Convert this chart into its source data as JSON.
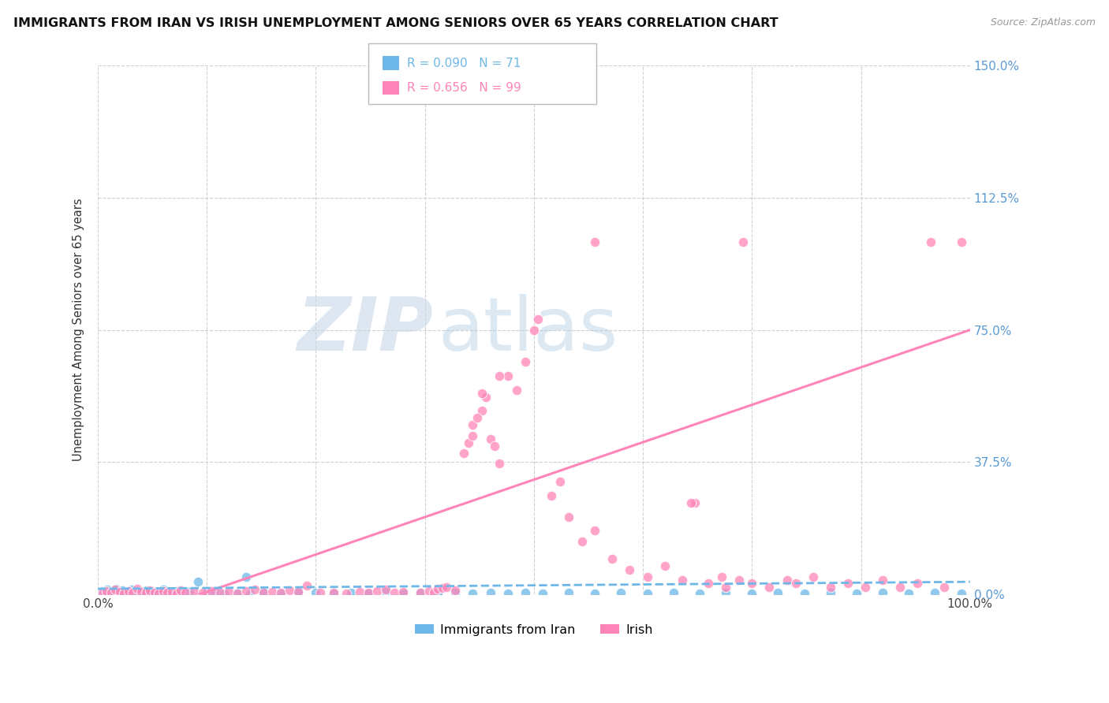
{
  "title": "IMMIGRANTS FROM IRAN VS IRISH UNEMPLOYMENT AMONG SENIORS OVER 65 YEARS CORRELATION CHART",
  "source": "Source: ZipAtlas.com",
  "ylabel": "Unemployment Among Seniors over 65 years",
  "xlim": [
    0.0,
    100.0
  ],
  "ylim": [
    0.0,
    150.0
  ],
  "xticks": [
    0.0,
    12.5,
    25.0,
    37.5,
    50.0,
    62.5,
    75.0,
    87.5,
    100.0
  ],
  "yticks": [
    0.0,
    37.5,
    75.0,
    112.5,
    150.0
  ],
  "xtick_labels": [
    "0.0%",
    "",
    "",
    "",
    "",
    "",
    "",
    "",
    "100.0%"
  ],
  "ytick_labels": [
    "0.0%",
    "37.5%",
    "75.0%",
    "112.5%",
    "150.0%"
  ],
  "iran_color": "#6db8e8",
  "irish_color": "#ff85b8",
  "iran_R": 0.09,
  "iran_N": 71,
  "irish_R": 0.656,
  "irish_N": 99,
  "iran_label": "Immigrants from Iran",
  "irish_label": "Irish",
  "watermark_zip": "ZIP",
  "watermark_atlas": "atlas",
  "background_color": "#ffffff",
  "grid_color": "#d0d0d0",
  "iran_scatter": [
    [
      0.3,
      0.3
    ],
    [
      0.5,
      0.8
    ],
    [
      0.7,
      0.5
    ],
    [
      0.9,
      0.2
    ],
    [
      1.1,
      1.2
    ],
    [
      1.3,
      0.4
    ],
    [
      1.5,
      0.6
    ],
    [
      1.7,
      0.9
    ],
    [
      1.9,
      0.3
    ],
    [
      2.1,
      1.5
    ],
    [
      2.3,
      0.7
    ],
    [
      2.5,
      0.2
    ],
    [
      2.8,
      1.0
    ],
    [
      3.0,
      0.5
    ],
    [
      3.3,
      0.3
    ],
    [
      3.6,
      0.8
    ],
    [
      3.9,
      1.3
    ],
    [
      4.2,
      0.4
    ],
    [
      4.5,
      0.6
    ],
    [
      4.8,
      0.2
    ],
    [
      5.2,
      0.9
    ],
    [
      5.6,
      1.1
    ],
    [
      6.0,
      0.3
    ],
    [
      6.5,
      0.7
    ],
    [
      7.0,
      0.4
    ],
    [
      7.5,
      1.2
    ],
    [
      8.0,
      0.5
    ],
    [
      8.5,
      0.3
    ],
    [
      9.0,
      0.8
    ],
    [
      9.5,
      0.2
    ],
    [
      10.5,
      0.6
    ],
    [
      11.5,
      3.5
    ],
    [
      12.5,
      0.4
    ],
    [
      13.5,
      0.7
    ],
    [
      14.5,
      0.3
    ],
    [
      16.0,
      0.5
    ],
    [
      17.5,
      0.2
    ],
    [
      19.0,
      0.6
    ],
    [
      21.0,
      0.3
    ],
    [
      23.0,
      0.8
    ],
    [
      25.0,
      0.4
    ],
    [
      27.0,
      0.2
    ],
    [
      29.0,
      0.5
    ],
    [
      31.0,
      0.3
    ],
    [
      33.0,
      0.7
    ],
    [
      35.0,
      0.2
    ],
    [
      37.0,
      0.4
    ],
    [
      39.0,
      0.3
    ],
    [
      41.0,
      0.5
    ],
    [
      43.0,
      0.2
    ],
    [
      45.0,
      0.4
    ],
    [
      47.0,
      0.3
    ],
    [
      49.0,
      0.5
    ],
    [
      51.0,
      0.2
    ],
    [
      54.0,
      0.4
    ],
    [
      57.0,
      0.3
    ],
    [
      60.0,
      0.5
    ],
    [
      63.0,
      0.2
    ],
    [
      66.0,
      0.4
    ],
    [
      69.0,
      0.3
    ],
    [
      72.0,
      0.5
    ],
    [
      75.0,
      0.2
    ],
    [
      78.0,
      0.4
    ],
    [
      81.0,
      0.3
    ],
    [
      84.0,
      0.5
    ],
    [
      87.0,
      0.2
    ],
    [
      90.0,
      0.4
    ],
    [
      93.0,
      0.3
    ],
    [
      96.0,
      0.5
    ],
    [
      99.0,
      0.2
    ],
    [
      17.0,
      5.0
    ]
  ],
  "irish_scatter": [
    [
      0.5,
      0.5
    ],
    [
      1.0,
      0.8
    ],
    [
      1.5,
      0.4
    ],
    [
      2.0,
      1.2
    ],
    [
      2.5,
      0.6
    ],
    [
      3.0,
      0.3
    ],
    [
      3.5,
      0.9
    ],
    [
      4.0,
      0.5
    ],
    [
      4.5,
      1.5
    ],
    [
      5.0,
      0.7
    ],
    [
      5.5,
      0.4
    ],
    [
      6.0,
      1.0
    ],
    [
      6.5,
      0.5
    ],
    [
      7.0,
      0.3
    ],
    [
      7.5,
      0.8
    ],
    [
      8.0,
      0.4
    ],
    [
      8.5,
      0.6
    ],
    [
      9.0,
      0.2
    ],
    [
      9.5,
      1.1
    ],
    [
      10.0,
      0.5
    ],
    [
      11.0,
      0.7
    ],
    [
      12.0,
      0.4
    ],
    [
      13.0,
      0.9
    ],
    [
      14.0,
      0.5
    ],
    [
      15.0,
      0.6
    ],
    [
      16.0,
      0.3
    ],
    [
      17.0,
      0.8
    ],
    [
      18.0,
      1.2
    ],
    [
      19.0,
      0.5
    ],
    [
      20.0,
      0.7
    ],
    [
      21.0,
      0.4
    ],
    [
      22.0,
      1.0
    ],
    [
      23.0,
      0.6
    ],
    [
      24.0,
      2.5
    ],
    [
      25.5,
      0.4
    ],
    [
      27.0,
      0.5
    ],
    [
      28.5,
      0.3
    ],
    [
      30.0,
      0.7
    ],
    [
      31.0,
      0.4
    ],
    [
      32.0,
      0.8
    ],
    [
      33.0,
      1.2
    ],
    [
      34.0,
      0.5
    ],
    [
      35.0,
      0.6
    ],
    [
      37.0,
      0.4
    ],
    [
      38.0,
      0.9
    ],
    [
      38.5,
      0.5
    ],
    [
      39.0,
      1.5
    ],
    [
      39.5,
      1.8
    ],
    [
      40.0,
      2.0
    ],
    [
      41.0,
      1.0
    ],
    [
      42.5,
      43.0
    ],
    [
      43.0,
      48.0
    ],
    [
      44.0,
      52.0
    ],
    [
      44.5,
      56.0
    ],
    [
      45.0,
      44.0
    ],
    [
      45.5,
      42.0
    ],
    [
      46.0,
      37.0
    ],
    [
      47.0,
      62.0
    ],
    [
      48.0,
      58.0
    ],
    [
      49.0,
      66.0
    ],
    [
      50.5,
      78.0
    ],
    [
      52.0,
      28.0
    ],
    [
      53.0,
      32.0
    ],
    [
      54.0,
      22.0
    ],
    [
      55.5,
      15.0
    ],
    [
      57.0,
      18.0
    ],
    [
      59.0,
      10.0
    ],
    [
      61.0,
      7.0
    ],
    [
      63.0,
      5.0
    ],
    [
      65.0,
      8.0
    ],
    [
      67.0,
      4.0
    ],
    [
      68.5,
      26.0
    ],
    [
      70.0,
      3.0
    ],
    [
      71.5,
      5.0
    ],
    [
      72.0,
      2.0
    ],
    [
      73.5,
      4.0
    ],
    [
      75.0,
      3.0
    ],
    [
      77.0,
      2.0
    ],
    [
      79.0,
      4.0
    ],
    [
      80.0,
      3.0
    ],
    [
      82.0,
      5.0
    ],
    [
      84.0,
      2.0
    ],
    [
      86.0,
      3.0
    ],
    [
      88.0,
      2.0
    ],
    [
      90.0,
      4.0
    ],
    [
      92.0,
      2.0
    ],
    [
      94.0,
      3.0
    ],
    [
      95.5,
      100.0
    ],
    [
      97.0,
      2.0
    ],
    [
      99.0,
      100.0
    ],
    [
      57.0,
      100.0
    ],
    [
      74.0,
      100.0
    ],
    [
      68.0,
      26.0
    ],
    [
      50.0,
      75.0
    ],
    [
      46.0,
      62.0
    ],
    [
      44.0,
      57.0
    ],
    [
      43.5,
      50.0
    ],
    [
      43.0,
      45.0
    ],
    [
      42.0,
      40.0
    ]
  ],
  "irish_line": [
    [
      0,
      -10
    ],
    [
      100,
      75
    ]
  ],
  "iran_line": [
    [
      0,
      1.5
    ],
    [
      100,
      3.5
    ]
  ]
}
